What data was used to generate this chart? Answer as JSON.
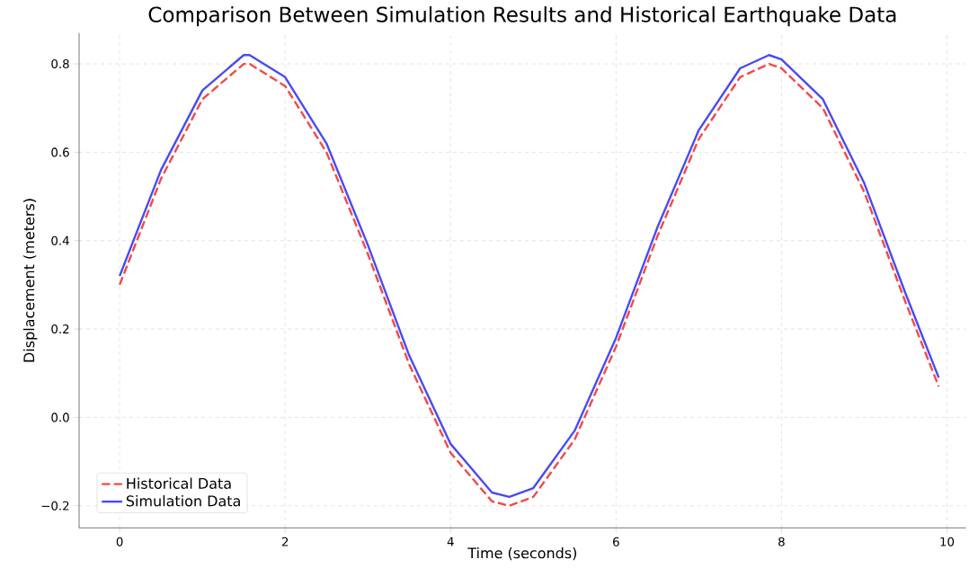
{
  "chart_data": {
    "type": "line",
    "title": "Comparison Between Simulation Results and Historical Earthquake Data",
    "xlabel": "Time (seconds)",
    "ylabel": "Displacement (meters)",
    "x": [
      0,
      0.5,
      1.0,
      1.5,
      1.57,
      2.0,
      2.5,
      3.0,
      3.5,
      4.0,
      4.5,
      4.71,
      5.0,
      5.5,
      6.0,
      6.5,
      7.0,
      7.5,
      7.85,
      8.0,
      8.5,
      9.0,
      9.5,
      9.9
    ],
    "series": [
      {
        "name": "Historical Data",
        "color": "#f24a4a",
        "line_style": "dashed",
        "values": [
          0.3,
          0.54,
          0.72,
          0.8,
          0.8,
          0.75,
          0.6,
          0.37,
          0.12,
          -0.08,
          -0.19,
          -0.2,
          -0.18,
          -0.05,
          0.16,
          0.41,
          0.63,
          0.77,
          0.8,
          0.79,
          0.7,
          0.51,
          0.26,
          0.07
        ]
      },
      {
        "name": "Simulation Data",
        "color": "#4a4af2",
        "line_style": "solid",
        "values": [
          0.32,
          0.56,
          0.74,
          0.82,
          0.82,
          0.77,
          0.62,
          0.39,
          0.14,
          -0.06,
          -0.17,
          -0.18,
          -0.16,
          -0.03,
          0.18,
          0.43,
          0.65,
          0.79,
          0.82,
          0.81,
          0.72,
          0.53,
          0.28,
          0.09
        ]
      }
    ],
    "xlim": [
      -0.49,
      10.23
    ],
    "ylim": [
      -0.25,
      0.87
    ],
    "xticks": [
      0,
      2,
      4,
      6,
      8,
      10
    ],
    "yticks": [
      {
        "value": -0.2,
        "label": "−0.2"
      },
      {
        "value": 0.0,
        "label": "0.0"
      },
      {
        "value": 0.2,
        "label": "0.2"
      },
      {
        "value": 0.4,
        "label": "0.4"
      },
      {
        "value": 0.6,
        "label": "0.6"
      },
      {
        "value": 0.8,
        "label": "0.8"
      }
    ],
    "grid": true,
    "legend": "bottom left",
    "marker": "none"
  }
}
